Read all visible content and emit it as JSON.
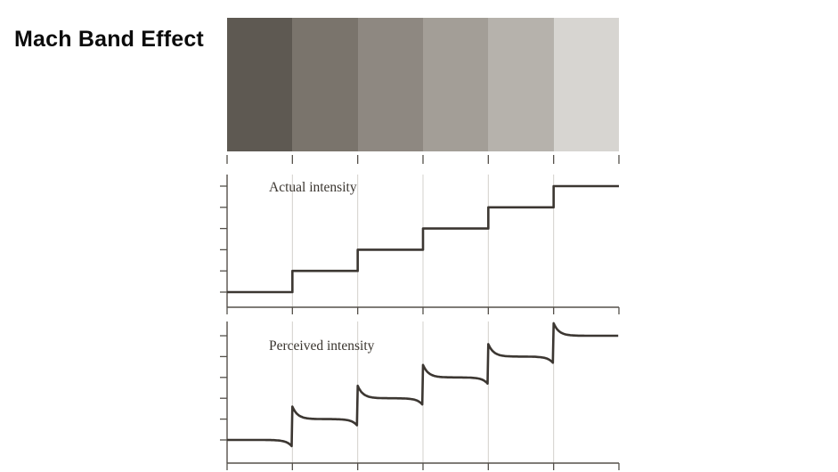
{
  "title": "Mach Band Effect",
  "strip": {
    "description": "six vertical gray bands of increasing brightness, left to right",
    "colors": [
      "#5e5952",
      "#7a746c",
      "#8e8881",
      "#a39e97",
      "#b6b2ac",
      "#d7d5d1"
    ]
  },
  "chart_data": [
    {
      "type": "line",
      "title": "Actual intensity",
      "x": [
        0,
        1,
        2,
        3,
        4,
        5,
        6
      ],
      "series": [
        {
          "name": "Actual intensity",
          "shape": "staircase",
          "step_levels": [
            1,
            2,
            3,
            4,
            5,
            6
          ]
        }
      ],
      "xlabel": "",
      "ylabel": "",
      "ylim": [
        0,
        7
      ],
      "grid": "faint vertical lines at step boundaries",
      "legend": "none",
      "ticks": {
        "bottom": 7,
        "left": 6
      }
    },
    {
      "type": "line",
      "title": "Perceived intensity",
      "x": [
        0,
        1,
        2,
        3,
        4,
        5,
        6
      ],
      "series": [
        {
          "name": "Perceived intensity",
          "shape": "staircase-with-mach-bands",
          "step_levels": [
            1,
            2,
            3,
            4,
            5,
            6
          ],
          "overshoot": 0.6,
          "undershoot": 0.34
        }
      ],
      "xlabel": "",
      "ylabel": "",
      "ylim": [
        0,
        7
      ],
      "grid": "faint vertical lines at step boundaries",
      "legend": "none",
      "ticks": {
        "bottom": 7,
        "left": 6
      }
    }
  ],
  "colors": {
    "curve": "#3c3732",
    "axis": "#55504a",
    "grid": "#d3d0cc",
    "title_text": "#0b0b0b",
    "label_text": "#3a352f"
  }
}
